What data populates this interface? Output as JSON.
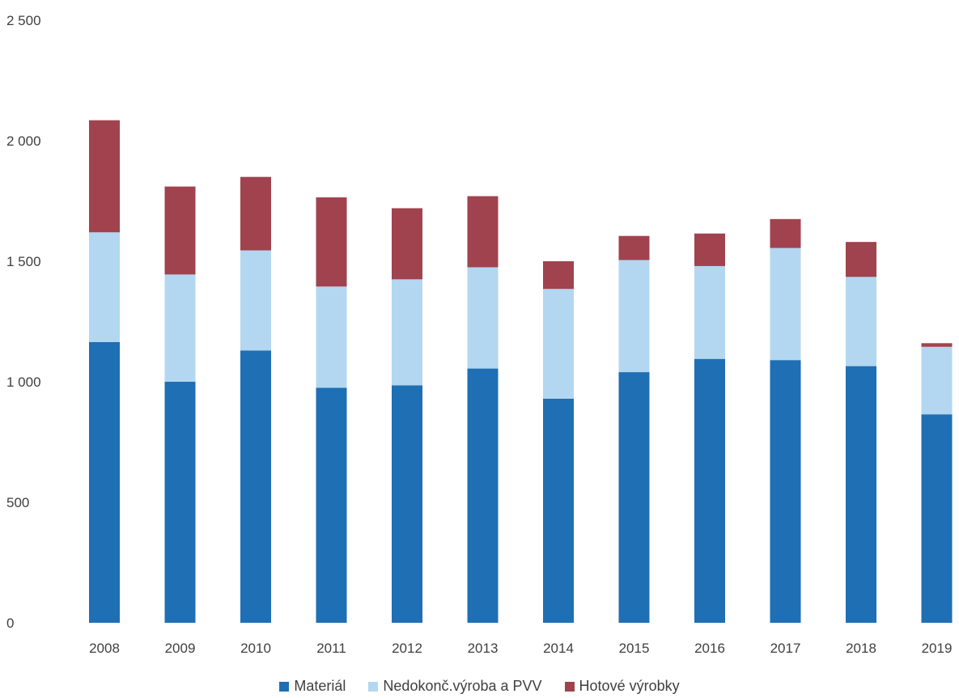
{
  "chart_data": {
    "type": "bar",
    "stacked": true,
    "categories": [
      "2008",
      "2009",
      "2010",
      "2011",
      "2012",
      "2013",
      "2014",
      "2015",
      "2016",
      "2017",
      "2018",
      "2019"
    ],
    "series": [
      {
        "name": "Materiál",
        "color": "#1f6fb5",
        "values": [
          1165,
          1000,
          1130,
          975,
          985,
          1055,
          930,
          1040,
          1095,
          1090,
          1065,
          865
        ]
      },
      {
        "name": "Nedokonč.výroba a PVV",
        "color": "#b3d7f0",
        "values": [
          455,
          445,
          415,
          420,
          440,
          420,
          455,
          465,
          385,
          465,
          370,
          280
        ]
      },
      {
        "name": "Hotové výrobky",
        "color": "#a0434e",
        "values": [
          465,
          365,
          305,
          370,
          295,
          295,
          115,
          100,
          135,
          120,
          145,
          15
        ]
      }
    ],
    "y_ticks": [
      "0",
      "500",
      "1 000",
      "1 500",
      "2 000",
      "2 500"
    ],
    "ylim": [
      0,
      2500
    ],
    "grid": false,
    "legend_position": "bottom"
  }
}
